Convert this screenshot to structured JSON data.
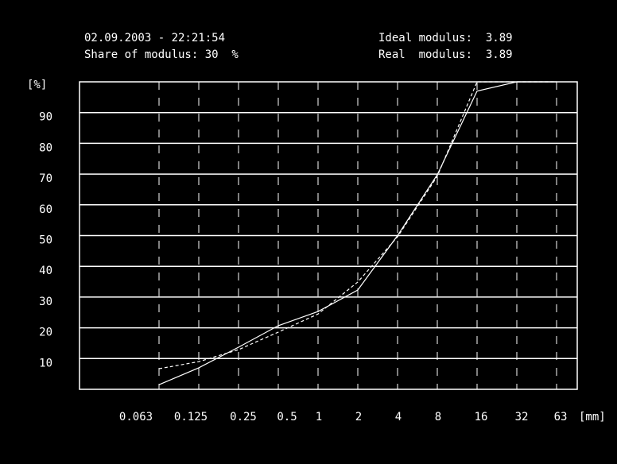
{
  "chart_data": {
    "type": "line",
    "header": {
      "datetime": "02.09.2003 - 22:21:54",
      "share": "Share of modulus: 30  %",
      "ideal": "Ideal modulus:  3.89",
      "real": "Real  modulus:  3.89"
    },
    "ylabel": "[%]",
    "xlabel": "[mm]",
    "categories": [
      "0.063",
      "0.125",
      "0.25",
      "0.5",
      "1",
      "2",
      "4",
      "8",
      "16",
      "32",
      "63"
    ],
    "series": [
      {
        "color": "#ffffff",
        "style": "solid",
        "values": [
          1.5,
          7,
          13.7,
          20.7,
          25.3,
          32.3,
          50,
          69.8,
          97,
          100,
          100
        ]
      },
      {
        "color": "#ffffff",
        "style": "dashed",
        "values": [
          6.7,
          9,
          12.9,
          18.6,
          24.5,
          34.9,
          49.6,
          69.3,
          100,
          100,
          100
        ]
      }
    ],
    "ylim": [
      0,
      100
    ],
    "yticks": [
      10,
      20,
      30,
      40,
      50,
      60,
      70,
      80,
      90
    ],
    "grid": true
  }
}
